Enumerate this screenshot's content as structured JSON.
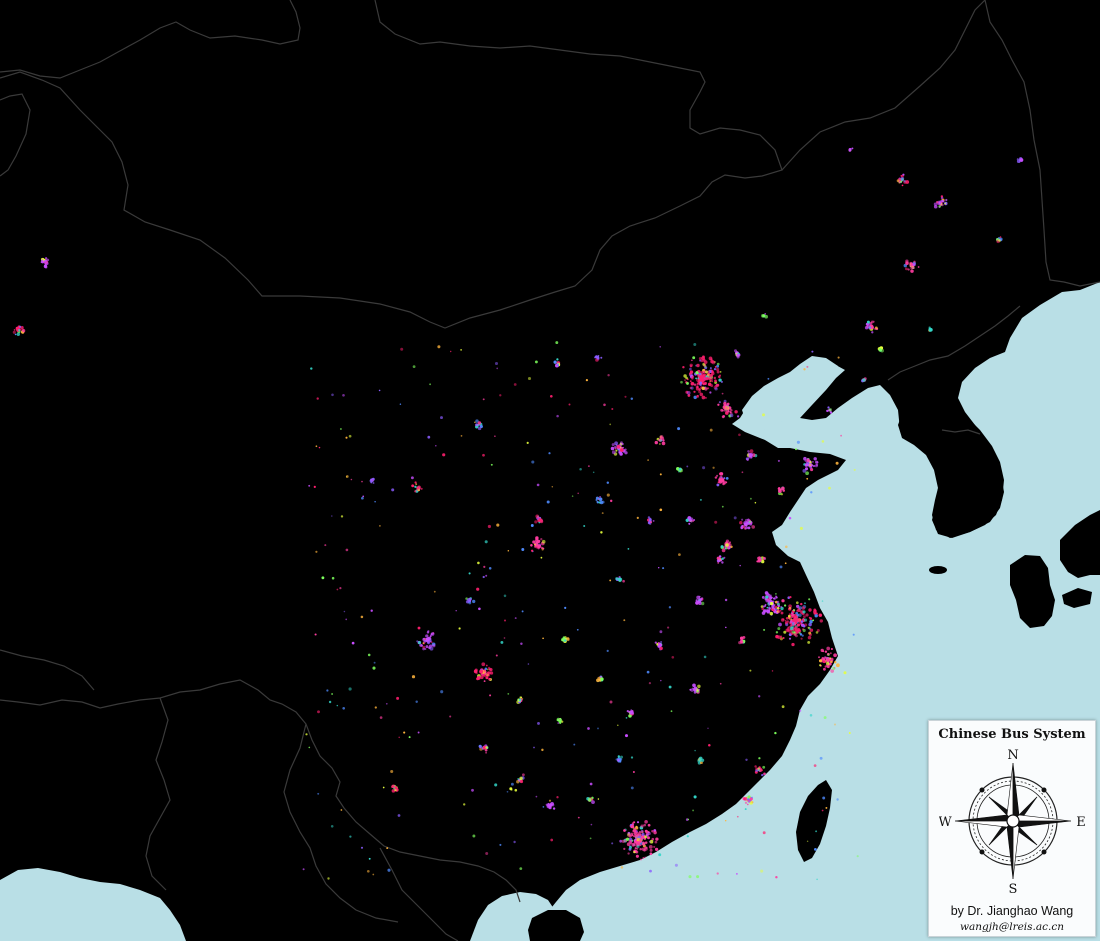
{
  "map": {
    "background_land": "#000000",
    "sea_color": "#b9dfe6",
    "border_color": "#3a3a3a",
    "bus_route_colors": [
      "#ff1f6e",
      "#ff3ca0",
      "#c84dff",
      "#8a5cff",
      "#4f8bff",
      "#33d6c8",
      "#7dff5c",
      "#e6ff3c",
      "#ffb43c"
    ]
  },
  "legend": {
    "title": "Chinese Bus System",
    "author": "by Dr. Jianghao Wang",
    "email": "wangjh@lreis.ac.cn",
    "compass": {
      "north": "N",
      "south": "S",
      "east": "E",
      "west": "W"
    }
  }
}
